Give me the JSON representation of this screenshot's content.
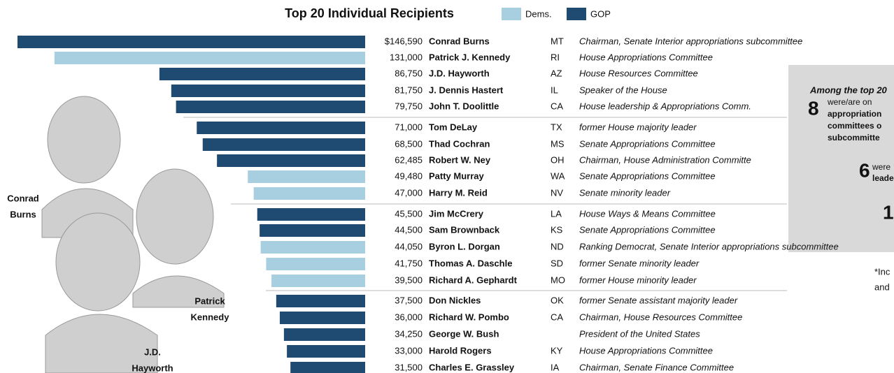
{
  "chart_data": {
    "type": "bar",
    "orientation": "horizontal",
    "title": "Top 20 Individual Recipients",
    "legend": [
      {
        "name": "Dems.",
        "color": "#a8cfe0"
      },
      {
        "name": "GOP",
        "color": "#1f4a72"
      }
    ],
    "categories": [
      "Conrad Burns",
      "Patrick J. Kennedy",
      "J.D. Hayworth",
      "J. Dennis Hastert",
      "John T. Doolittle",
      "Tom DeLay",
      "Thad Cochran",
      "Robert W. Ney",
      "Patty Murray",
      "Harry M. Reid",
      "Jim McCrery",
      "Sam Brownback",
      "Byron L. Dorgan",
      "Thomas A. Daschle",
      "Richard A. Gephardt",
      "Don Nickles",
      "Richard W. Pombo",
      "George W. Bush",
      "Harold Rogers",
      "Charles E. Grassley"
    ],
    "values": [
      146590,
      131000,
      86750,
      81750,
      79750,
      71000,
      68500,
      62485,
      49480,
      47000,
      45500,
      44500,
      44050,
      41750,
      39500,
      37500,
      36000,
      34250,
      33000,
      31500
    ],
    "value_labels": [
      "$146,590",
      "131,000",
      "86,750",
      "81,750",
      "79,750",
      "71,000",
      "68,500",
      "62,485",
      "49,480",
      "47,000",
      "45,500",
      "44,500",
      "44,050",
      "41,750",
      "39,500",
      "37,500",
      "36,000",
      "34,250",
      "33,000",
      "31,500"
    ],
    "party": [
      1,
      0,
      1,
      1,
      1,
      1,
      1,
      1,
      0,
      0,
      1,
      1,
      0,
      0,
      0,
      1,
      1,
      1,
      1,
      1
    ],
    "states": [
      "MT",
      "RI",
      "AZ",
      "IL",
      "CA",
      "TX",
      "MS",
      "OH",
      "WA",
      "NV",
      "LA",
      "KS",
      "ND",
      "SD",
      "MO",
      "OK",
      "CA",
      null,
      "KY",
      "IA"
    ],
    "descriptions": [
      "Chairman, Senate Interior appropriations subcommittee",
      "House Appropriations Committee",
      "House Resources Committee",
      "Speaker of the House",
      "House leadership & Appropriations Comm.",
      "former House majority leader",
      "Senate Appropriations Committee",
      "Chairman, House Administration Committe",
      "Senate Appropriations Committee",
      "Senate minority leader",
      "House Ways & Means Committee",
      "Senate Appropriations Committee",
      "Ranking Democrat, Senate Interior appropriations subcommittee",
      "former Senate minority leader",
      "former House minority leader",
      "former Senate assistant majority leader",
      "Chairman, House Resources Committee",
      "President of the United States",
      "House Appropriations Committee",
      "Chairman, Senate Finance Committee"
    ],
    "photo_labels": [
      [
        "Conrad",
        "Burns"
      ],
      [
        "Patrick",
        "Kennedy"
      ],
      [
        "J.D.",
        "Hayworth"
      ]
    ]
  },
  "sidebar": {
    "heading": "Among the top 20",
    "items": [
      {
        "number": 8,
        "lines": [
          "were/are on",
          "appropriation",
          "committees o",
          "subcommitte"
        ]
      },
      {
        "number": 6,
        "lines": [
          "were",
          "leade"
        ]
      },
      {
        "number": 1,
        "lines": []
      }
    ],
    "footnote": [
      "*Inc",
      "and"
    ]
  }
}
